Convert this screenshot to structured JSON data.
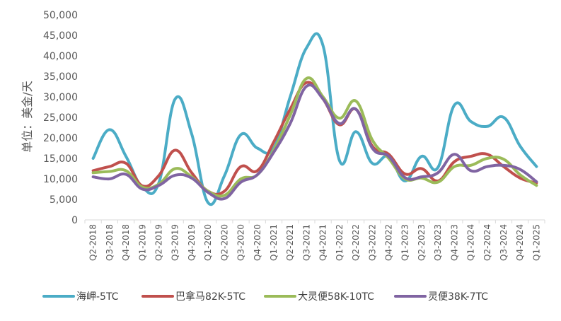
{
  "chart_data": {
    "type": "line",
    "ylabel": "单位：美金/天",
    "ylim": [
      0,
      50000
    ],
    "y_ticks": [
      0,
      5000,
      10000,
      15000,
      20000,
      25000,
      30000,
      35000,
      40000,
      45000,
      50000
    ],
    "y_tick_labels": [
      "0",
      "5,000",
      "10,000",
      "15,000",
      "20,000",
      "25,000",
      "30,000",
      "35,000",
      "40,000",
      "45,000",
      "50,000"
    ],
    "grid": false,
    "legend_position": "bottom",
    "categories": [
      "Q2-2018",
      "Q3-2018",
      "Q4-2018",
      "Q1-2019",
      "Q2-2019",
      "Q3-2019",
      "Q4-2019",
      "Q1-2020",
      "Q2-2020",
      "Q3-2020",
      "Q4-2020",
      "Q1-2021",
      "Q2-2021",
      "Q3-2021",
      "Q4-2021",
      "Q1-2022",
      "Q2-2022",
      "Q3-2022",
      "Q4-2022",
      "Q1-2023",
      "Q2-2023",
      "Q3-2023",
      "Q4-2023",
      "Q1-2024",
      "Q2-2024",
      "Q3-2024",
      "Q4-2024",
      "Q1-2025"
    ],
    "series": [
      {
        "name": "海岬-5TC",
        "color": "#4BACC6",
        "values": [
          15000,
          22000,
          15500,
          8000,
          9000,
          29500,
          21000,
          4200,
          10800,
          20800,
          17500,
          17500,
          30000,
          42000,
          42500,
          14500,
          21500,
          13800,
          15500,
          9500,
          15500,
          12800,
          28000,
          24000,
          22800,
          25000,
          18000,
          13000
        ]
      },
      {
        "name": "巴拿马82K-5TC",
        "color": "#C0504D",
        "values": [
          12000,
          13000,
          13800,
          8300,
          10800,
          17000,
          11500,
          7000,
          7000,
          13000,
          12000,
          19000,
          27000,
          33500,
          29500,
          23200,
          27000,
          18000,
          16000,
          11200,
          12500,
          9500,
          14200,
          15500,
          16000,
          13000,
          10200,
          9000
        ]
      },
      {
        "name": "大灵便58K-10TC",
        "color": "#9BBB59",
        "values": [
          11500,
          11800,
          12000,
          8000,
          8700,
          12500,
          10500,
          7000,
          6000,
          10000,
          11000,
          17000,
          25500,
          34500,
          30000,
          24800,
          29000,
          19500,
          15000,
          10000,
          10200,
          9200,
          13000,
          13300,
          15000,
          14800,
          11000,
          8400
        ]
      },
      {
        "name": "灵便38K-7TC",
        "color": "#8064A2",
        "values": [
          10500,
          10000,
          11100,
          7500,
          8400,
          10900,
          10200,
          6700,
          5200,
          9200,
          11000,
          16500,
          23500,
          32600,
          29500,
          23500,
          27000,
          17500,
          15500,
          10300,
          10500,
          11500,
          16000,
          12000,
          13000,
          13300,
          12300,
          9300
        ]
      }
    ]
  }
}
